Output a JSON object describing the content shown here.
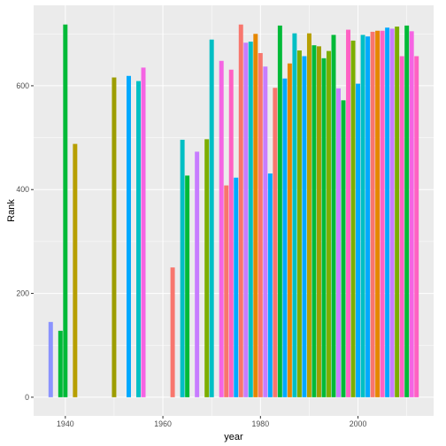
{
  "chart_data": {
    "type": "bar",
    "title": "",
    "xlabel": "year",
    "ylabel": "Rank",
    "xlim": [
      1933.5,
      2015.5
    ],
    "ylim": [
      -36,
      755
    ],
    "x_ticks": [
      1940,
      1960,
      1980,
      2000
    ],
    "y_ticks": [
      0,
      200,
      400,
      600
    ],
    "grid": true,
    "legend": "none",
    "panel_background": "#ebebeb",
    "grid_color": "#ffffff",
    "bars": [
      {
        "x": 1937,
        "value": 145,
        "color": "#8b93ff"
      },
      {
        "x": 1939,
        "value": 128,
        "color": "#00ba38"
      },
      {
        "x": 1940,
        "value": 718,
        "color": "#00ba38"
      },
      {
        "x": 1942,
        "value": 488,
        "color": "#b79f00"
      },
      {
        "x": 1950,
        "value": 616,
        "color": "#9d9d00"
      },
      {
        "x": 1953,
        "value": 619,
        "color": "#00a9ff"
      },
      {
        "x": 1955,
        "value": 609,
        "color": "#00bfc4"
      },
      {
        "x": 1956,
        "value": 635,
        "color": "#f564e3"
      },
      {
        "x": 1962,
        "value": 250,
        "color": "#f8766d"
      },
      {
        "x": 1964,
        "value": 496,
        "color": "#00bfc4"
      },
      {
        "x": 1965,
        "value": 427,
        "color": "#00ba38"
      },
      {
        "x": 1967,
        "value": 473,
        "color": "#c77cff"
      },
      {
        "x": 1969,
        "value": 497,
        "color": "#7cae00"
      },
      {
        "x": 1970,
        "value": 689,
        "color": "#00bfc4"
      },
      {
        "x": 1972,
        "value": 648,
        "color": "#f564e3"
      },
      {
        "x": 1973,
        "value": 408,
        "color": "#f8766d"
      },
      {
        "x": 1974,
        "value": 631,
        "color": "#ff61c3"
      },
      {
        "x": 1975,
        "value": 423,
        "color": "#00a9ff"
      },
      {
        "x": 1976,
        "value": 718,
        "color": "#f8766d"
      },
      {
        "x": 1977,
        "value": 683,
        "color": "#c77cff"
      },
      {
        "x": 1978,
        "value": 685,
        "color": "#00bfc4"
      },
      {
        "x": 1979,
        "value": 700,
        "color": "#e58700"
      },
      {
        "x": 1980,
        "value": 663,
        "color": "#f8766d"
      },
      {
        "x": 1981,
        "value": 637,
        "color": "#c77cff"
      },
      {
        "x": 1982,
        "value": 431,
        "color": "#00a9ff"
      },
      {
        "x": 1983,
        "value": 596,
        "color": "#f8766d"
      },
      {
        "x": 1984,
        "value": 716,
        "color": "#00ba38"
      },
      {
        "x": 1985,
        "value": 614,
        "color": "#00a9ff"
      },
      {
        "x": 1986,
        "value": 643,
        "color": "#e58700"
      },
      {
        "x": 1987,
        "value": 701,
        "color": "#00bfc4"
      },
      {
        "x": 1988,
        "value": 668,
        "color": "#7cae00"
      },
      {
        "x": 1989,
        "value": 657,
        "color": "#00a9ff"
      },
      {
        "x": 1990,
        "value": 701,
        "color": "#b79f00"
      },
      {
        "x": 1991,
        "value": 678,
        "color": "#00ba38"
      },
      {
        "x": 1992,
        "value": 676,
        "color": "#9d9d00"
      },
      {
        "x": 1993,
        "value": 653,
        "color": "#00ba38"
      },
      {
        "x": 1994,
        "value": 667,
        "color": "#7cae00"
      },
      {
        "x": 1995,
        "value": 698,
        "color": "#00ba38"
      },
      {
        "x": 1996,
        "value": 595,
        "color": "#c77cff"
      },
      {
        "x": 1997,
        "value": 572,
        "color": "#00ba38"
      },
      {
        "x": 1998,
        "value": 708,
        "color": "#ff61c3"
      },
      {
        "x": 1999,
        "value": 687,
        "color": "#7cae00"
      },
      {
        "x": 2000,
        "value": 604,
        "color": "#00a9ff"
      },
      {
        "x": 2001,
        "value": 698,
        "color": "#00bfc4"
      },
      {
        "x": 2002,
        "value": 695,
        "color": "#00a9ff"
      },
      {
        "x": 2003,
        "value": 704,
        "color": "#f8766d"
      },
      {
        "x": 2004,
        "value": 706,
        "color": "#e58700"
      },
      {
        "x": 2005,
        "value": 706,
        "color": "#ff61c3"
      },
      {
        "x": 2006,
        "value": 712,
        "color": "#00a9ff"
      },
      {
        "x": 2007,
        "value": 710,
        "color": "#c77cff"
      },
      {
        "x": 2008,
        "value": 714,
        "color": "#7cae00"
      },
      {
        "x": 2009,
        "value": 657,
        "color": "#ff61c3"
      },
      {
        "x": 2010,
        "value": 716,
        "color": "#00ba38"
      },
      {
        "x": 2011,
        "value": 705,
        "color": "#f564e3"
      },
      {
        "x": 2012,
        "value": 657,
        "color": "#ff61c3"
      }
    ]
  }
}
